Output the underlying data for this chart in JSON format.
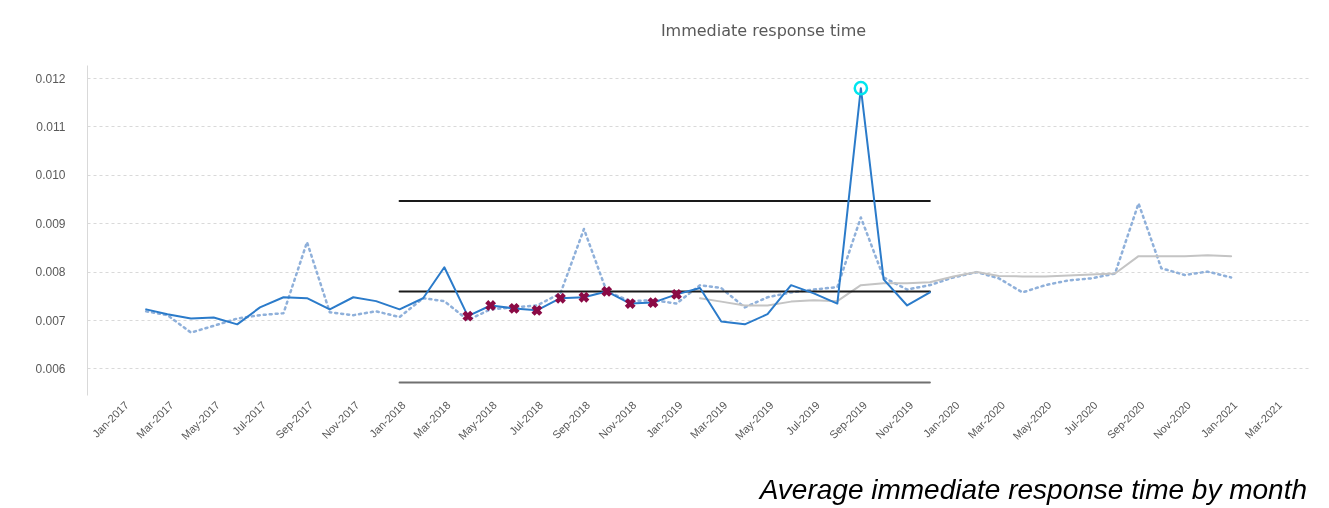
{
  "chart_data": {
    "type": "line",
    "title": "Immediate response time",
    "annotations": [
      "Average immediate response time by month"
    ],
    "xlim": [
      "2016-11-15",
      "2021-04-15"
    ],
    "xticks": [
      {
        "value": "2017-01",
        "label": "Jan-2017"
      },
      {
        "value": "2017-03",
        "label": "Mar-2017"
      },
      {
        "value": "2017-05",
        "label": "May-2017"
      },
      {
        "value": "2017-07",
        "label": "Jul-2017"
      },
      {
        "value": "2017-09",
        "label": "Sep-2017"
      },
      {
        "value": "2017-11",
        "label": "Nov-2017"
      },
      {
        "value": "2018-01",
        "label": "Jan-2018"
      },
      {
        "value": "2018-03",
        "label": "Mar-2018"
      },
      {
        "value": "2018-05",
        "label": "May-2018"
      },
      {
        "value": "2018-07",
        "label": "Jul-2018"
      },
      {
        "value": "2018-09",
        "label": "Sep-2018"
      },
      {
        "value": "2018-11",
        "label": "Nov-2018"
      },
      {
        "value": "2019-01",
        "label": "Jan-2019"
      },
      {
        "value": "2019-03",
        "label": "Mar-2019"
      },
      {
        "value": "2019-05",
        "label": "May-2019"
      },
      {
        "value": "2019-07",
        "label": "Jul-2019"
      },
      {
        "value": "2019-09",
        "label": "Sep-2019"
      },
      {
        "value": "2019-11",
        "label": "Nov-2019"
      },
      {
        "value": "2020-01",
        "label": "Jan-2020"
      },
      {
        "value": "2020-03",
        "label": "Mar-2020"
      },
      {
        "value": "2020-05",
        "label": "May-2020"
      },
      {
        "value": "2020-07",
        "label": "Jul-2020"
      },
      {
        "value": "2020-09",
        "label": "Sep-2020"
      },
      {
        "value": "2020-11",
        "label": "Nov-2020"
      },
      {
        "value": "2021-01",
        "label": "Jan-2021"
      },
      {
        "value": "2021-03",
        "label": "Mar-2021"
      }
    ],
    "ylim": [
      0.00545,
      0.01227
    ],
    "yticks": [
      {
        "value": 0.006,
        "label": "0.006"
      },
      {
        "value": 0.007,
        "label": "0.007"
      },
      {
        "value": 0.008,
        "label": "0.008"
      },
      {
        "value": 0.009,
        "label": "0.009"
      },
      {
        "value": 0.01,
        "label": "0.010"
      },
      {
        "value": 0.011,
        "label": "0.011"
      },
      {
        "value": 0.012,
        "label": "0.012"
      }
    ],
    "grid": "y",
    "series": [
      {
        "type": "line",
        "color": "#8fb0da",
        "line_style": "dotted",
        "x": [
          "2017-02",
          "2017-03",
          "2017-04",
          "2017-05",
          "2017-06",
          "2017-07",
          "2017-08",
          "2017-09",
          "2017-10",
          "2017-11",
          "2017-12",
          "2018-01",
          "2018-02",
          "2018-03",
          "2018-04",
          "2018-05",
          "2018-06",
          "2018-07",
          "2018-08",
          "2018-09",
          "2018-10",
          "2018-11",
          "2018-12",
          "2019-01",
          "2019-02",
          "2019-03",
          "2019-04",
          "2019-05",
          "2019-06",
          "2019-07",
          "2019-08",
          "2019-09",
          "2019-10",
          "2019-11",
          "2019-12",
          "2020-01",
          "2020-02",
          "2020-03",
          "2020-04",
          "2020-05",
          "2020-06",
          "2020-07",
          "2020-08",
          "2020-09",
          "2020-10",
          "2020-11",
          "2020-12",
          "2021-01"
        ],
        "values": [
          0.00718,
          0.0071,
          0.00674,
          0.00688,
          0.00703,
          0.0071,
          0.00714,
          0.00861,
          0.00716,
          0.0071,
          0.00718,
          0.00706,
          0.00745,
          0.00739,
          0.007,
          0.00722,
          0.00726,
          0.0073,
          0.00755,
          0.00888,
          0.00759,
          0.00739,
          0.00741,
          0.00734,
          0.00772,
          0.00766,
          0.00726,
          0.00747,
          0.00757,
          0.00763,
          0.00768,
          0.00912,
          0.00788,
          0.00763,
          0.00772,
          0.00788,
          0.00799,
          0.00786,
          0.00757,
          0.00772,
          0.00782,
          0.00786,
          0.00796,
          0.00941,
          0.00807,
          0.00793,
          0.008,
          0.00788
        ]
      },
      {
        "type": "line",
        "color": "#c4c4c4",
        "line_style": "solid",
        "x": [
          "2019-02",
          "2019-03",
          "2019-04",
          "2019-05",
          "2019-06",
          "2019-07",
          "2019-08",
          "2019-09",
          "2019-10",
          "2019-11",
          "2019-12",
          "2020-01",
          "2020-02",
          "2020-03",
          "2020-04",
          "2020-05",
          "2020-06",
          "2020-07",
          "2020-08",
          "2020-09",
          "2020-10",
          "2020-11",
          "2020-12",
          "2021-01"
        ],
        "values": [
          0.00745,
          0.00738,
          0.0073,
          0.0073,
          0.00738,
          0.00741,
          0.00739,
          0.00772,
          0.00776,
          0.00776,
          0.00778,
          0.0079,
          0.00799,
          0.00791,
          0.0079,
          0.0079,
          0.00792,
          0.00794,
          0.00796,
          0.00832,
          0.00832,
          0.00832,
          0.00834,
          0.00832
        ]
      },
      {
        "type": "line",
        "color": "#1a1a1a",
        "line_style": "solid",
        "x": [
          "2018-01",
          "2019-12"
        ],
        "values": [
          0.00946,
          0.00946
        ]
      },
      {
        "type": "line",
        "color": "#1a1a1a",
        "line_style": "solid",
        "x": [
          "2018-01",
          "2019-12"
        ],
        "values": [
          0.00759,
          0.00759
        ]
      },
      {
        "type": "line",
        "color": "#707070",
        "line_style": "solid",
        "x": [
          "2018-01",
          "2019-12"
        ],
        "values": [
          0.00571,
          0.00571
        ]
      },
      {
        "type": "line",
        "color": "#2b7bca",
        "line_style": "solid",
        "x": [
          "2017-02",
          "2017-03",
          "2017-04",
          "2017-05",
          "2017-06",
          "2017-07",
          "2017-08",
          "2017-09",
          "2017-10",
          "2017-11",
          "2017-12",
          "2018-01",
          "2018-02",
          "2018-03",
          "2018-04",
          "2018-05",
          "2018-06",
          "2018-07",
          "2018-08",
          "2018-09",
          "2018-10",
          "2018-11",
          "2018-12",
          "2019-01",
          "2019-02",
          "2019-03",
          "2019-04",
          "2019-05",
          "2019-06",
          "2019-07",
          "2019-08",
          "2019-09",
          "2019-10",
          "2019-11",
          "2019-12"
        ],
        "values": [
          0.00722,
          0.00712,
          0.00703,
          0.00705,
          0.00691,
          0.00726,
          0.00747,
          0.00745,
          0.00722,
          0.00747,
          0.00739,
          0.00722,
          0.00745,
          0.00809,
          0.00708,
          0.0073,
          0.00724,
          0.0072,
          0.00745,
          0.00747,
          0.00759,
          0.00734,
          0.00736,
          0.00753,
          0.00766,
          0.00697,
          0.00691,
          0.00712,
          0.00772,
          0.00755,
          0.00734,
          0.01179,
          0.00784,
          0.0073,
          0.00757
        ]
      },
      {
        "type": "scatter",
        "color": "#8b0a45",
        "marker": "cross",
        "x": [
          "2018-04",
          "2018-05",
          "2018-06",
          "2018-07",
          "2018-08",
          "2018-09",
          "2018-10",
          "2018-11",
          "2018-12",
          "2019-01"
        ],
        "values": [
          0.00708,
          0.0073,
          0.00724,
          0.0072,
          0.00745,
          0.00747,
          0.00759,
          0.00734,
          0.00736,
          0.00753
        ]
      },
      {
        "type": "scatter",
        "color": "#00e5ee",
        "marker": "circle",
        "x": [
          "2019-09"
        ],
        "values": [
          0.01179
        ]
      }
    ]
  }
}
